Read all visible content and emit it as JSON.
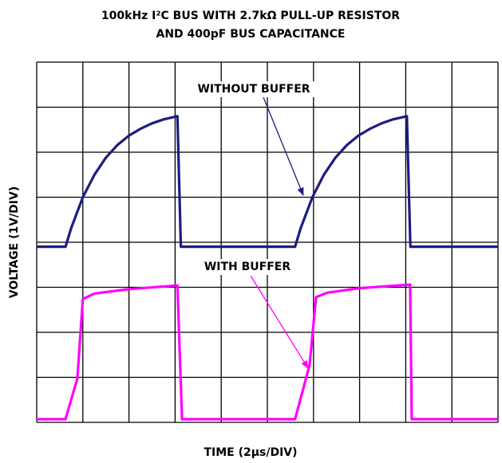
{
  "chart_data": {
    "type": "line",
    "title": [
      "100kHz I²C BUS WITH 2.7kΩ PULL-UP RESISTOR",
      "AND 400pF BUS CAPACITANCE"
    ],
    "x_label": "TIME (2µs/DIV)",
    "y_label": "VOLTAGE (1V/DIV)",
    "xlim": [
      0,
      20
    ],
    "ylim": [
      0,
      8
    ],
    "xticks": [
      0,
      2,
      4,
      6,
      8,
      10,
      12,
      14,
      16,
      18,
      20
    ],
    "yticks": [
      0,
      1,
      2,
      3,
      4,
      5,
      6,
      7,
      8
    ],
    "grid": true,
    "annotations": [
      "WITHOUT BUFFER",
      "WITH BUFFER"
    ],
    "series": [
      {
        "color": "#1c1c80",
        "x": [
          0,
          1.25,
          1.5,
          2.0,
          2.5,
          3.0,
          3.5,
          4.0,
          4.5,
          5.0,
          5.5,
          6.1,
          6.25,
          11.2,
          11.45,
          11.95,
          12.45,
          12.95,
          13.45,
          13.95,
          14.45,
          14.95,
          15.45,
          16.05,
          16.2,
          20
        ],
        "values": [
          3.9,
          3.9,
          4.32,
          5.0,
          5.5,
          5.88,
          6.16,
          6.37,
          6.52,
          6.64,
          6.73,
          6.8,
          3.9,
          3.9,
          4.32,
          5.0,
          5.5,
          5.88,
          6.16,
          6.37,
          6.52,
          6.64,
          6.73,
          6.8,
          3.9,
          3.9
        ]
      },
      {
        "color": "#ff00ff",
        "x": [
          0,
          1.25,
          1.76,
          2.0,
          2.5,
          4.0,
          6.1,
          6.3,
          11.2,
          11.83,
          12.11,
          12.6,
          14.0,
          16.19,
          16.26,
          20
        ],
        "values": [
          0.07,
          0.07,
          0.97,
          2.74,
          2.86,
          2.96,
          3.04,
          0.07,
          0.07,
          1.27,
          2.78,
          2.88,
          2.98,
          3.06,
          0.07,
          0.07
        ]
      }
    ]
  }
}
